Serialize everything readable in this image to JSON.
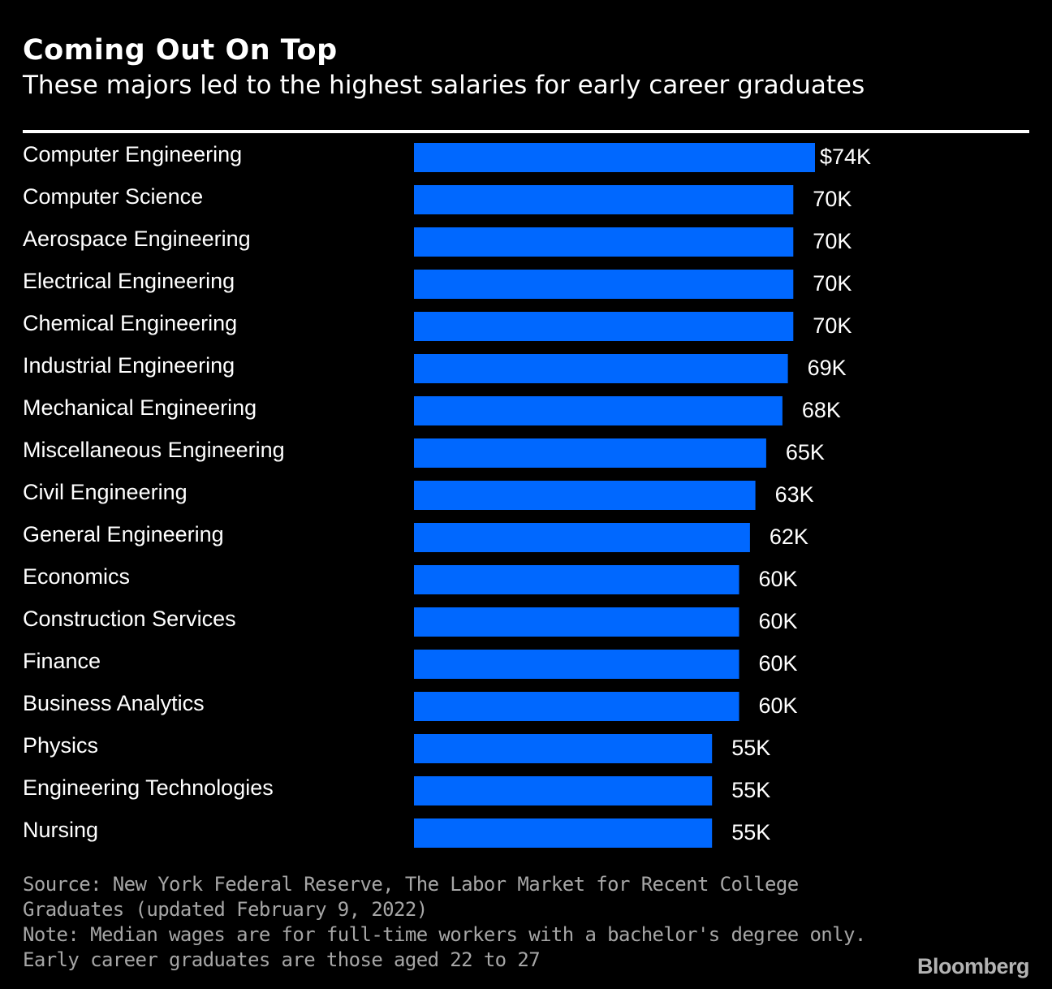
{
  "header": {
    "title": "Coming Out On Top",
    "subtitle": "These majors led to the highest salaries for early career graduates"
  },
  "chart_data": {
    "type": "bar",
    "orientation": "horizontal",
    "title": "Coming Out On Top",
    "subtitle": "These majors led to the highest salaries for early career graduates",
    "categories": [
      "Computer Engineering",
      "Computer Science",
      "Aerospace Engineering",
      "Electrical Engineering",
      "Chemical Engineering",
      "Industrial Engineering",
      "Mechanical Engineering",
      "Miscellaneous Engineering",
      "Civil Engineering",
      "General Engineering",
      "Economics",
      "Construction Services",
      "Finance",
      "Business Analytics",
      "Physics",
      "Engineering Technologies",
      "Nursing"
    ],
    "values": [
      74,
      70,
      70,
      70,
      70,
      69,
      68,
      65,
      63,
      62,
      60,
      60,
      60,
      60,
      55,
      55,
      55
    ],
    "value_labels": [
      "$74K",
      "70K",
      "70K",
      "70K",
      "70K",
      "69K",
      "68K",
      "65K",
      "63K",
      "62K",
      "60K",
      "60K",
      "60K",
      "60K",
      "55K",
      "55K",
      "55K"
    ],
    "unit": "thousands of USD",
    "xlim": [
      0,
      74
    ],
    "grid": false,
    "legend": "none",
    "bar_color": "#0068ff"
  },
  "footer": {
    "source": "Source: New York Federal Reserve, The Labor Market for Recent College Graduates (updated February 9, 2022)",
    "note": "Note: Median wages are for full-time workers with a bachelor's degree only. Early career graduates are those aged 22 to 27",
    "brand": "Bloomberg"
  },
  "colors": {
    "background": "#000000",
    "text": "#ffffff",
    "bar": "#0068ff",
    "footnote": "#a6a6a6"
  }
}
